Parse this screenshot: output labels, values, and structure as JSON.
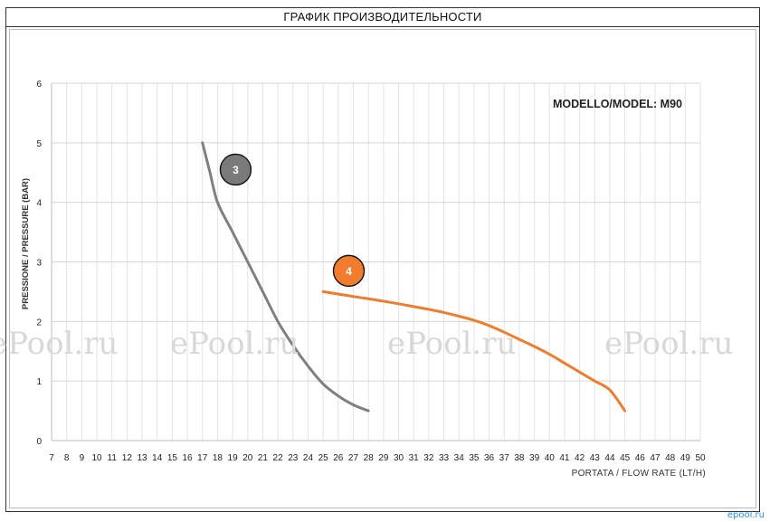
{
  "page": {
    "title": "ГРАФИК ПРОИЗВОДИТЕЛЬНОСТИ",
    "watermark": "ePool.ru",
    "corner_mark": "epool.ru"
  },
  "chart_data": {
    "type": "line",
    "title": "",
    "model_label": "MODELLO/MODEL: M90",
    "xlabel": "PORTATA / FLOW RATE (LT/H)",
    "ylabel": "PRESSIONE / PRESSURE (BAR)",
    "xlim": [
      7,
      50
    ],
    "ylim": [
      0,
      6
    ],
    "x_ticks": [
      7,
      8,
      9,
      10,
      11,
      12,
      13,
      14,
      15,
      16,
      17,
      18,
      19,
      20,
      21,
      22,
      23,
      24,
      25,
      26,
      27,
      28,
      29,
      30,
      31,
      32,
      33,
      34,
      35,
      36,
      37,
      38,
      39,
      40,
      41,
      42,
      43,
      44,
      45,
      46,
      47,
      48,
      49,
      50
    ],
    "y_ticks": [
      0,
      1,
      2,
      3,
      4,
      5,
      6
    ],
    "grid": true,
    "legend": "none",
    "series": [
      {
        "name": "3",
        "color": "#808080",
        "badge_color": "#7a7a7a",
        "badge_pos": [
          19.2,
          4.55
        ],
        "x": [
          17,
          17.5,
          18,
          19,
          20,
          21,
          22,
          23,
          24,
          25,
          26,
          27,
          28
        ],
        "y": [
          5.0,
          4.5,
          4.0,
          3.5,
          3.0,
          2.5,
          2.0,
          1.6,
          1.25,
          0.95,
          0.75,
          0.6,
          0.5
        ]
      },
      {
        "name": "4",
        "color": "#f07c2d",
        "badge_color": "#f07c2d",
        "badge_pos": [
          26.7,
          2.85
        ],
        "x": [
          25,
          27,
          29,
          31,
          33,
          35,
          36,
          37,
          38,
          39,
          40,
          41,
          42,
          43,
          44,
          45
        ],
        "y": [
          2.5,
          2.42,
          2.34,
          2.25,
          2.15,
          2.02,
          1.93,
          1.82,
          1.7,
          1.58,
          1.45,
          1.3,
          1.15,
          1.0,
          0.85,
          0.5
        ]
      }
    ]
  }
}
